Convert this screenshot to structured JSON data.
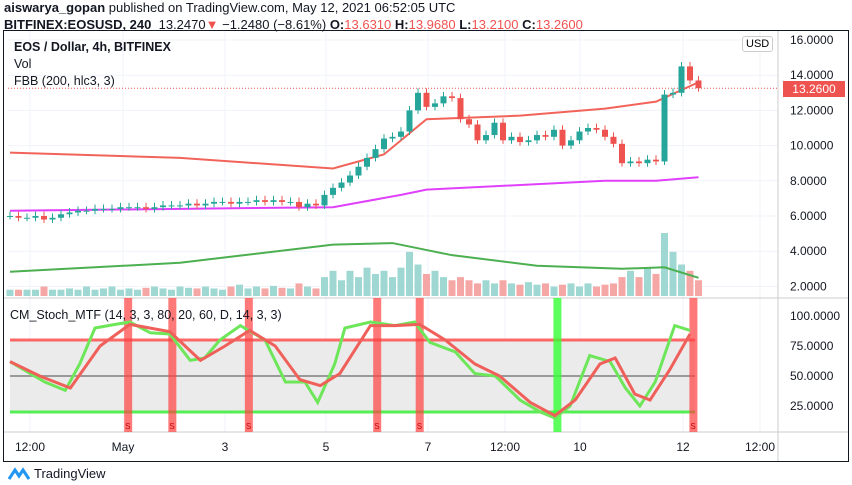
{
  "header": {
    "author": "aiswarya_gopan",
    "published": "published on TradingView.com, May 12, 2021 06:52:05 UTC",
    "symbol": "BITFINEX:EOSUSD, 240",
    "last": "13.2470",
    "change": "−1.2480 (−8.61%)",
    "o_label": "O:",
    "o": "13.6310",
    "h_label": "H:",
    "h": "13.9680",
    "l_label": "L:",
    "l": "13.2100",
    "c_label": "C:",
    "c": "13.2600"
  },
  "legend": {
    "title": "EOS / Dollar, 4h, BITFINEX",
    "vol": "Vol",
    "fbb": "FBB (200, hlc3, 3)",
    "stoch": "CM_Stoch_MTF (14, 3, 3, 80, 20, 60, D, 14, 3, 3)"
  },
  "currency": "USD",
  "price_label": "13.2600",
  "brand": "TradingView",
  "colors": {
    "up": "#26a69a",
    "down": "#ef5350",
    "basis": "#f2635a",
    "lower": "#e040fb",
    "vol_ma": "#4caf50",
    "k": "#6ee65a",
    "d": "#f0605a"
  },
  "chart_data": [
    {
      "type": "candlestick",
      "title": "EOS / Dollar, 4h, BITFINEX",
      "ylim": [
        1,
        16
      ],
      "yticks": [
        "16.0000",
        "14.0000",
        "12.0000",
        "10.0000",
        "8.0000",
        "6.0000",
        "4.0000",
        "2.0000"
      ],
      "xticks": [
        "12:00",
        "May",
        "3",
        "5",
        "7",
        "12:00",
        "10",
        "12",
        "12:00"
      ],
      "close": [
        6.0,
        5.9,
        5.9,
        6.0,
        5.8,
        5.9,
        6.1,
        6.2,
        6.3,
        6.3,
        6.4,
        6.4,
        6.4,
        6.5,
        6.5,
        6.5,
        6.4,
        6.5,
        6.6,
        6.6,
        6.6,
        6.7,
        6.6,
        6.7,
        6.8,
        6.8,
        6.7,
        6.8,
        6.8,
        6.9,
        6.8,
        6.9,
        6.8,
        6.8,
        6.5,
        6.7,
        6.6,
        7.2,
        7.6,
        7.9,
        8.3,
        8.8,
        9.3,
        9.8,
        10.4,
        10.5,
        10.8,
        12.0,
        13.0,
        12.2,
        12.4,
        12.8,
        12.7,
        11.5,
        11.2,
        10.3,
        10.6,
        11.3,
        10.3,
        10.5,
        10.2,
        10.3,
        10.6,
        10.5,
        10.9,
        10.0,
        10.3,
        10.8,
        11.0,
        10.9,
        10.5,
        10.1,
        9.0,
        9.1,
        9.0,
        9.2,
        9.1,
        12.9,
        13.0,
        14.5,
        13.7,
        13.26
      ],
      "basis": [
        [
          0,
          9.6
        ],
        [
          20,
          9.3
        ],
        [
          38,
          8.7
        ],
        [
          44,
          9.5
        ],
        [
          49,
          11.5
        ],
        [
          60,
          11.7
        ],
        [
          70,
          12.1
        ],
        [
          76,
          12.5
        ],
        [
          81,
          13.6
        ]
      ],
      "lower": [
        [
          0,
          6.3
        ],
        [
          38,
          6.5
        ],
        [
          46,
          7.2
        ],
        [
          49,
          7.5
        ],
        [
          70,
          8.0
        ],
        [
          76,
          8.0
        ],
        [
          81,
          8.2
        ]
      ],
      "volume": [
        1,
        1,
        1,
        1,
        1.5,
        1,
        1,
        1.2,
        1,
        1.5,
        1,
        1.2,
        1.5,
        1,
        1.2,
        1,
        1.3,
        1.5,
        1.2,
        1,
        1.5,
        1.3,
        1.2,
        1.5,
        1.2,
        1,
        1.5,
        1.8,
        1.2,
        1.5,
        1.2,
        1.6,
        1.3,
        1.2,
        2,
        1.5,
        1.2,
        3,
        4,
        2.5,
        4,
        3,
        4.5,
        3.5,
        4,
        3,
        4.5,
        7,
        5,
        3.5,
        4,
        3,
        2.5,
        3,
        2.5,
        2,
        2.5,
        2,
        2.5,
        2,
        1.8,
        2.2,
        1.8,
        2,
        1.5,
        1.8,
        2,
        1.5,
        2,
        1.5,
        1.8,
        2,
        3,
        4,
        3,
        4.5,
        3.5,
        10,
        7,
        5,
        4,
        2.5
      ],
      "vol_ma": [
        [
          0,
          1.6
        ],
        [
          20,
          2.2
        ],
        [
          38,
          3.4
        ],
        [
          45,
          3.5
        ],
        [
          52,
          2.7
        ],
        [
          62,
          2.0
        ],
        [
          72,
          1.8
        ],
        [
          77,
          1.9
        ],
        [
          81,
          1.2
        ]
      ]
    },
    {
      "type": "line",
      "title": "CM_Stoch_MTF (14, 3, 3, 80, 20, 60, D, 14, 3, 3)",
      "ylim": [
        0,
        100
      ],
      "yticks": [
        "100.0000",
        "75.0000",
        "50.0000",
        "25.0000"
      ],
      "levels": [
        80,
        50,
        20
      ],
      "k": [
        [
          0,
          62
        ],
        [
          2.4,
          52
        ],
        [
          4.1,
          45
        ],
        [
          6.5,
          38
        ],
        [
          8.2,
          60
        ],
        [
          10,
          90
        ],
        [
          12.4,
          93
        ],
        [
          14.1,
          95
        ],
        [
          16.5,
          86
        ],
        [
          18.8,
          85
        ],
        [
          21.2,
          63
        ],
        [
          22.9,
          65
        ],
        [
          24.7,
          80
        ],
        [
          27.1,
          92
        ],
        [
          30,
          80
        ],
        [
          32.4,
          45
        ],
        [
          34.7,
          45
        ],
        [
          36.2,
          28
        ],
        [
          38.2,
          60
        ],
        [
          39.4,
          90
        ],
        [
          42.4,
          95
        ],
        [
          45.3,
          92
        ],
        [
          47.6,
          95
        ],
        [
          49.4,
          78
        ],
        [
          52.4,
          70
        ],
        [
          54.7,
          52
        ],
        [
          57.1,
          50
        ],
        [
          60,
          30
        ],
        [
          62.4,
          20
        ],
        [
          64.1,
          15
        ],
        [
          65.9,
          25
        ],
        [
          68.2,
          67
        ],
        [
          70.6,
          62
        ],
        [
          72.4,
          40
        ],
        [
          74.1,
          25
        ],
        [
          75.9,
          45
        ],
        [
          78.2,
          92
        ],
        [
          80,
          88
        ]
      ],
      "d": [
        [
          0,
          62
        ],
        [
          3.5,
          50
        ],
        [
          7.1,
          40
        ],
        [
          10.6,
          75
        ],
        [
          14.1,
          93
        ],
        [
          18.8,
          87
        ],
        [
          22.4,
          63
        ],
        [
          25.3,
          75
        ],
        [
          28.2,
          88
        ],
        [
          31.2,
          75
        ],
        [
          34.1,
          47
        ],
        [
          36.5,
          42
        ],
        [
          38.8,
          52
        ],
        [
          42.4,
          92
        ],
        [
          45.3,
          92
        ],
        [
          48.2,
          93
        ],
        [
          51.2,
          80
        ],
        [
          54.7,
          60
        ],
        [
          57.6,
          50
        ],
        [
          61.2,
          28
        ],
        [
          64.1,
          17
        ],
        [
          66.5,
          30
        ],
        [
          69.4,
          60
        ],
        [
          71.2,
          65
        ],
        [
          73.5,
          35
        ],
        [
          75.3,
          30
        ],
        [
          77.6,
          55
        ],
        [
          80,
          85
        ]
      ],
      "sell_signals": [
        13.9,
        19.1,
        28.1,
        43.2,
        48.2,
        80.4
      ],
      "buy_signals": [
        64.4
      ],
      "signal_mark": "S"
    }
  ]
}
